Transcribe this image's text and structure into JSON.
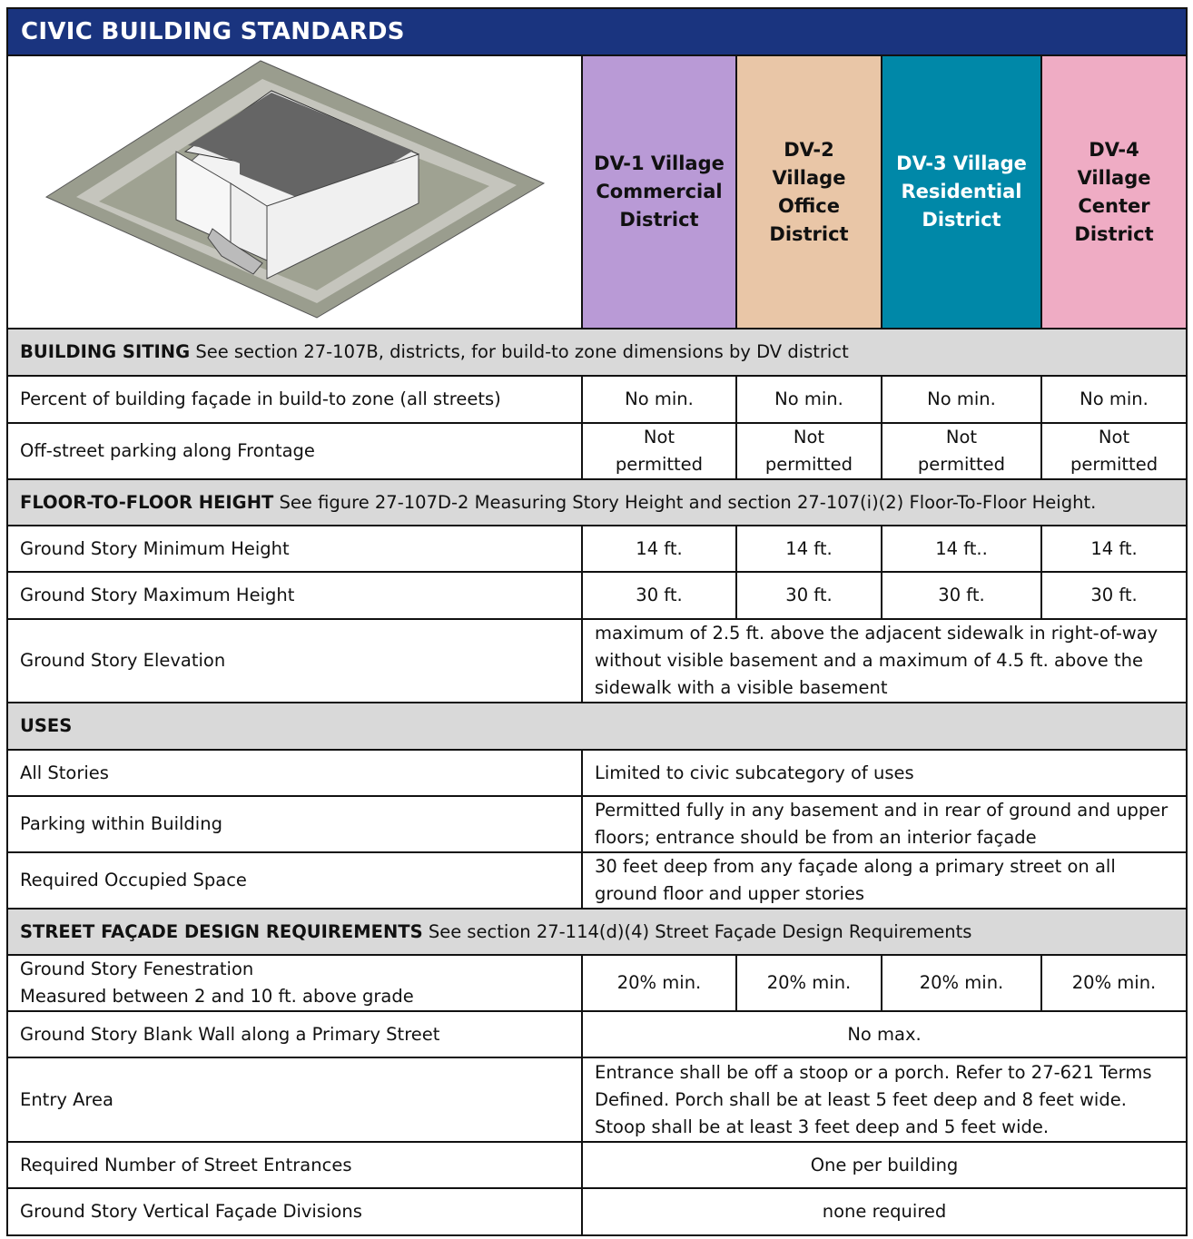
{
  "title": "CIVIC BUILDING STANDARDS",
  "districts": [
    {
      "name": "DV-1 Village Commercial District",
      "color": "#b99ad6",
      "text_color": "#111111"
    },
    {
      "name": "DV-2 Village Office District",
      "color": "#e9c6a7",
      "text_color": "#111111"
    },
    {
      "name": "DV-3 Village Residential District",
      "color": "#0088a8",
      "text_color": "#ffffff"
    },
    {
      "name": "DV-4 Village Center District",
      "color": "#efacc4",
      "text_color": "#111111"
    }
  ],
  "illustration": "isometric civic building on a corner lot",
  "rows": [
    {
      "type": "section",
      "bold": "BUILDING SITING",
      "text": " See section 27-107B, districts, for build-to zone dimensions by DV district"
    },
    {
      "type": "row",
      "label": "Percent of building façade in build-to zone (all streets)",
      "values": [
        "No min.",
        "No min.",
        "No min.",
        "No min."
      ]
    },
    {
      "type": "row",
      "label": "Off-street parking along Frontage",
      "values": [
        "Not permitted",
        "Not permitted",
        "Not permitted",
        "Not permitted"
      ]
    },
    {
      "type": "section",
      "bold": "FLOOR-TO-FLOOR HEIGHT",
      "text": "  See figure 27-107D-2 Measuring Story Height and section 27-107(i)(2) Floor-To-Floor Height."
    },
    {
      "type": "row",
      "label": "Ground Story Minimum Height",
      "values": [
        "14 ft.",
        "14 ft.",
        "14 ft..",
        "14 ft."
      ]
    },
    {
      "type": "row",
      "label": "Ground Story Maximum Height",
      "values": [
        "30 ft.",
        "30 ft.",
        "30 ft.",
        "30 ft."
      ]
    },
    {
      "type": "span",
      "label": "Ground Story Elevation",
      "value": "maximum of 2.5 ft. above the adjacent sidewalk in right-of-way without visible basement and a maximum of 4.5 ft. above the sidewalk with a visible basement",
      "align": "left"
    },
    {
      "type": "section",
      "bold": "USES",
      "text": ""
    },
    {
      "type": "span",
      "label": "All Stories",
      "value": "Limited to civic subcategory of uses",
      "align": "left"
    },
    {
      "type": "span",
      "label": "Parking within Building",
      "value": "Permitted fully in any basement and in rear of ground and upper floors; entrance should be from an interior façade",
      "align": "left"
    },
    {
      "type": "span",
      "label": "Required Occupied Space",
      "value": "30 feet deep from any façade along a primary street on all ground floor and upper stories",
      "align": "left"
    },
    {
      "type": "section",
      "bold": "STREET FAÇADE DESIGN REQUIREMENTS",
      "text": " See section 27-114(d)(4) Street Façade Design Requirements"
    },
    {
      "type": "row",
      "label": "Ground Story Fenestration",
      "sublabel": "Measured between 2 and 10 ft. above grade",
      "values": [
        "20% min.",
        "20% min.",
        "20% min.",
        "20% min."
      ]
    },
    {
      "type": "span",
      "label": "Ground Story Blank Wall along a Primary Street",
      "value": "No max.",
      "align": "center"
    },
    {
      "type": "span",
      "label": "Entry Area",
      "value": "Entrance shall be off a stoop or a porch. Refer to 27-621 Terms Defined. Porch shall be at least 5 feet deep and 8 feet wide. Stoop shall be at least 3 feet deep and 5 feet wide.",
      "align": "left"
    },
    {
      "type": "span",
      "label": "Required Number of Street Entrances",
      "value": "One per building",
      "align": "center"
    },
    {
      "type": "span",
      "label": "Ground Story Vertical Façade Divisions",
      "value": "none required",
      "align": "center"
    }
  ]
}
